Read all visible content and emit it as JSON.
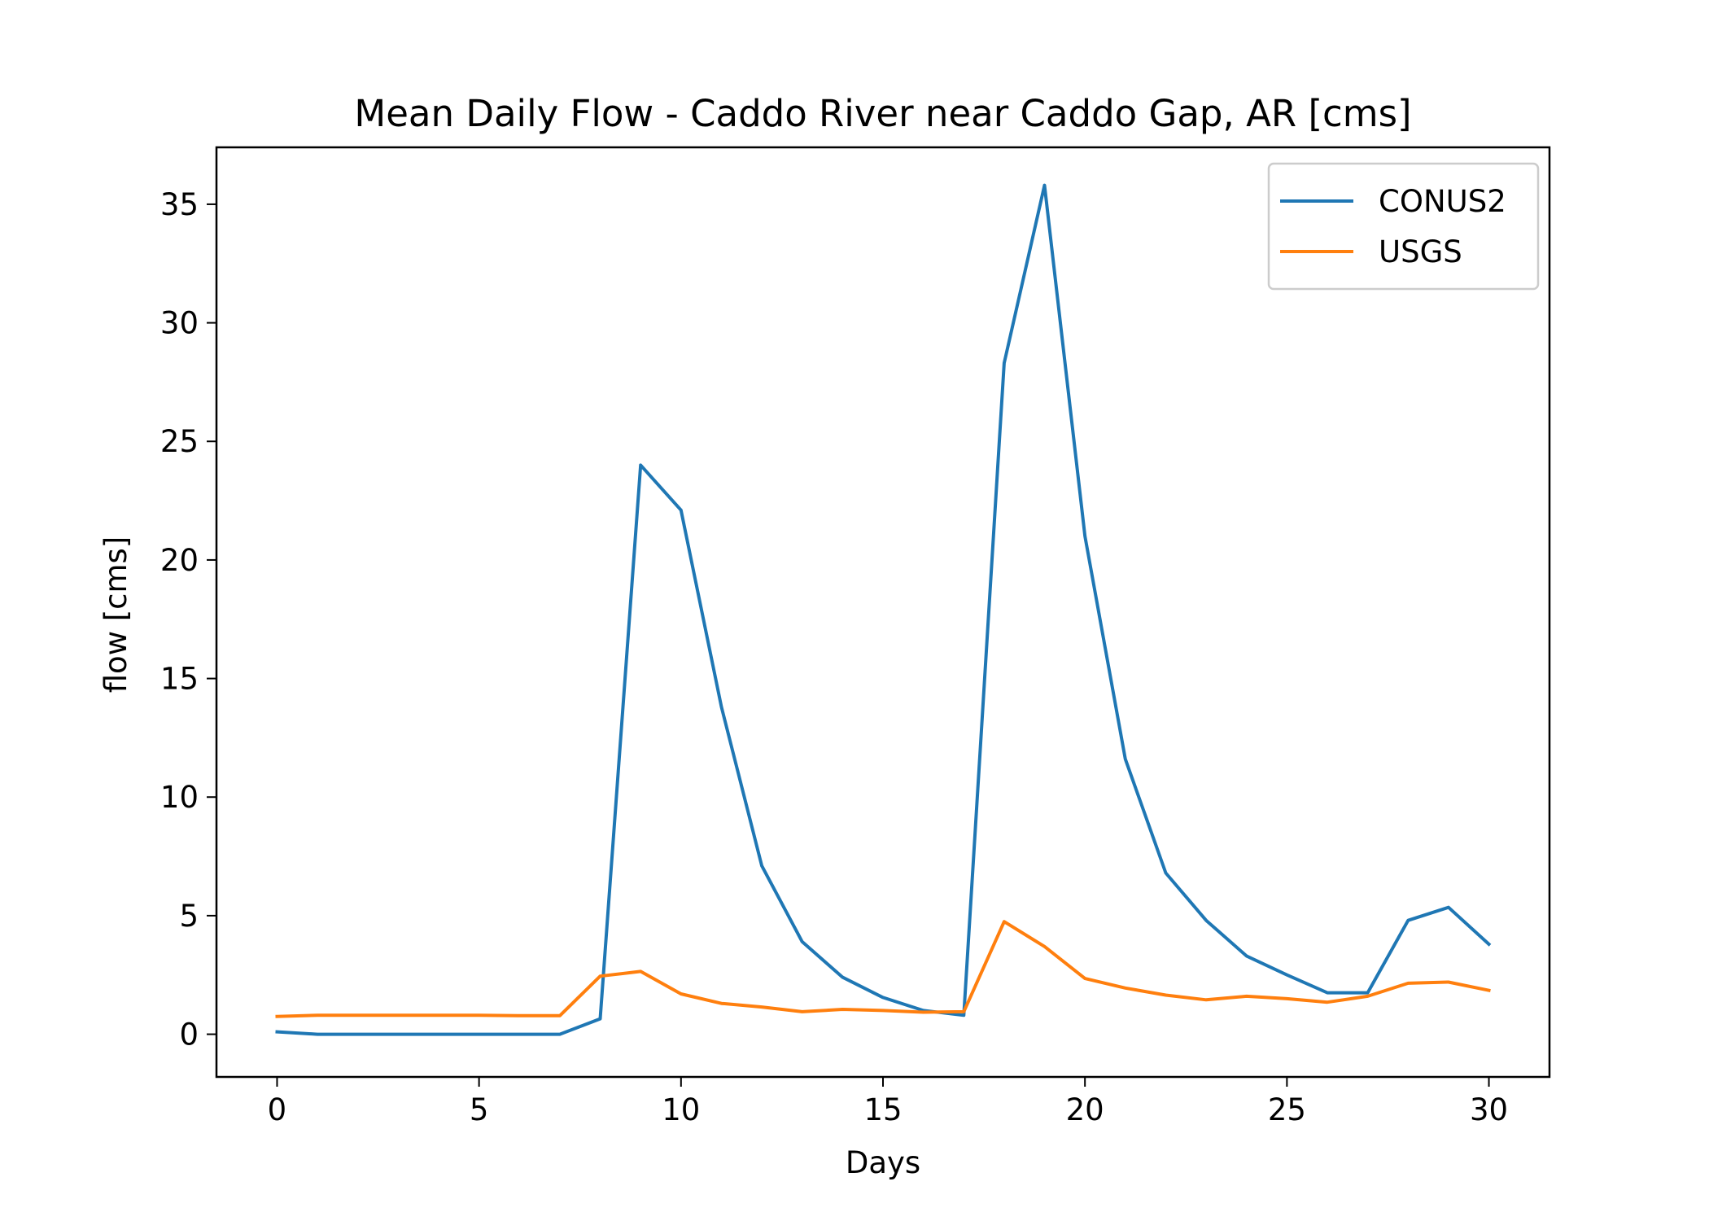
{
  "chart_data": {
    "type": "line",
    "title": "Mean Daily Flow - Caddo River near Caddo Gap, AR [cms]",
    "xlabel": "Days",
    "ylabel": "flow [cms]",
    "xlim": [
      -1.5,
      31.5
    ],
    "ylim": [
      -1.8,
      37.4
    ],
    "xticks": [
      0,
      5,
      10,
      15,
      20,
      25,
      30
    ],
    "yticks": [
      0,
      5,
      10,
      15,
      20,
      25,
      30,
      35
    ],
    "grid": false,
    "legend_position": "top-right",
    "x": [
      0,
      1,
      2,
      3,
      4,
      5,
      6,
      7,
      8,
      9,
      10,
      11,
      12,
      13,
      14,
      15,
      16,
      17,
      18,
      19,
      20,
      21,
      22,
      23,
      24,
      25,
      26,
      27,
      28,
      29,
      30
    ],
    "series": [
      {
        "name": "CONUS2",
        "color": "#1f77b4",
        "values": [
          0.1,
          0.0,
          0.0,
          0.0,
          0.0,
          0.0,
          0.0,
          0.0,
          0.65,
          24.0,
          22.1,
          13.8,
          7.1,
          3.9,
          2.4,
          1.55,
          1.0,
          0.8,
          28.3,
          35.8,
          21.0,
          11.6,
          6.8,
          4.8,
          3.3,
          2.5,
          1.75,
          1.75,
          4.8,
          5.35,
          3.8
        ]
      },
      {
        "name": "USGS",
        "color": "#ff7f0e",
        "values": [
          0.75,
          0.8,
          0.8,
          0.8,
          0.8,
          0.8,
          0.78,
          0.78,
          2.45,
          2.65,
          1.7,
          1.3,
          1.15,
          0.95,
          1.05,
          1.0,
          0.93,
          0.95,
          4.75,
          3.7,
          2.35,
          1.95,
          1.65,
          1.45,
          1.6,
          1.5,
          1.35,
          1.6,
          2.15,
          2.2,
          1.85
        ]
      }
    ]
  }
}
